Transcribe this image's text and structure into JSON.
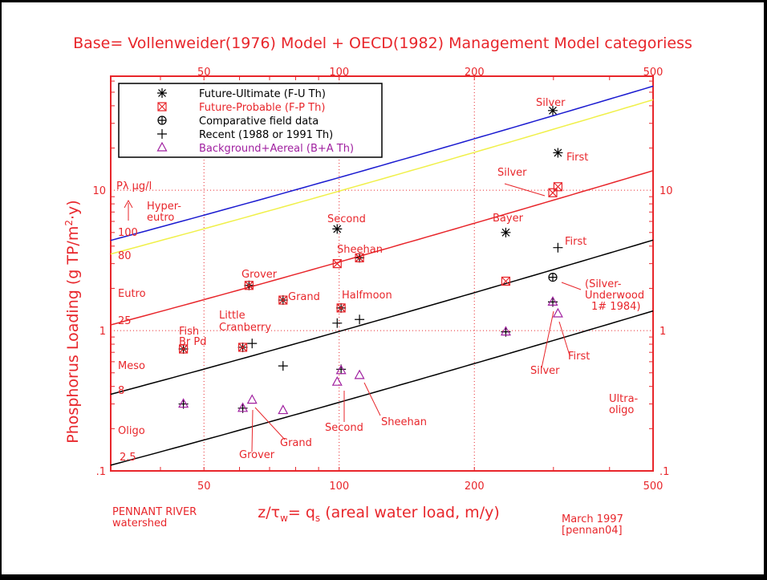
{
  "chart_data": {
    "type": "scatter",
    "title": "Base= Vollenweider(1976) Model + OECD(1982) Management Model categoriess",
    "xlabel": "z/τw= qs (areal water load, m/y)",
    "xlabel_parts": {
      "z": "z/",
      "tau": "τ",
      "w": "w",
      "eq": "= q",
      "s": "s",
      "rest": " (areal water load, m/y)"
    },
    "ylabel": "Phosphorus Loading (g TP/m²·y)",
    "ylabel_parts": {
      "main": "Phosphorus Loading (g TP/m",
      "sup": "2",
      "end": "·y)"
    },
    "x_scale": "log",
    "y_scale": "log",
    "xlim": [
      31,
      500
    ],
    "ylim": [
      0.1,
      65
    ],
    "x_ticks": [
      50,
      100,
      200,
      500
    ],
    "x_tick_labels": [
      "50",
      "100",
      "200",
      "500"
    ],
    "y_ticks": [
      0.1,
      1,
      10
    ],
    "y_tick_labels": [
      ".1",
      "1",
      "10"
    ],
    "colors": {
      "red": "#e8262b",
      "black": "#000000",
      "blue": "#1a1ad0",
      "yellow": "#f0f04a",
      "magenta": "#a020a0"
    },
    "legend": [
      {
        "symbol": "asterisk",
        "label": "Future-Ultimate (F-U Th)",
        "color": "#000000"
      },
      {
        "symbol": "boxed-x",
        "label": "Future-Probable (F-P Th)",
        "color": "#e8262b"
      },
      {
        "symbol": "circled-plus",
        "label": "Comparative field data",
        "color": "#000000"
      },
      {
        "symbol": "plus",
        "label": "Recent (1988 or 1991 Th)",
        "color": "#000000"
      },
      {
        "symbol": "triangle",
        "label": "Background+Aereal (B+A Th)",
        "color": "#a020a0"
      }
    ],
    "curves": [
      {
        "name": "100 µg/l",
        "color": "#1a1ad0",
        "factor": 0.1
      },
      {
        "name": "80 µg/l",
        "color": "#f0f04a",
        "factor": 0.08
      },
      {
        "name": "25 µg/l",
        "color": "#e8262b",
        "factor": 0.025
      },
      {
        "name": "8 µg/l",
        "color": "#000000",
        "factor": 0.008
      },
      {
        "name": "2.5 µg/l",
        "color": "#000000",
        "factor": 0.0025
      }
    ],
    "series": [
      {
        "name": "Future-Ultimate",
        "symbol": "asterisk",
        "points": [
          [
            299,
            37
          ],
          [
            307,
            18.5
          ],
          [
            99,
            5.3
          ],
          [
            235,
            5.0
          ],
          [
            63,
            2.1
          ],
          [
            75,
            1.65
          ],
          [
            101,
            1.45
          ],
          [
            111,
            3.3
          ],
          [
            61,
            0.76
          ],
          [
            45,
            0.74
          ]
        ]
      },
      {
        "name": "Future-Probable",
        "symbol": "boxed-x",
        "points": [
          [
            299,
            9.6
          ],
          [
            307,
            10.6
          ],
          [
            99,
            3.0
          ],
          [
            235,
            2.25
          ],
          [
            63,
            2.1
          ],
          [
            75,
            1.65
          ],
          [
            101,
            1.45
          ],
          [
            111,
            3.3
          ],
          [
            61,
            0.76
          ],
          [
            45,
            0.74
          ]
        ]
      },
      {
        "name": "Comparative",
        "symbol": "circled-plus",
        "points": [
          [
            299,
            2.4
          ]
        ]
      },
      {
        "name": "Recent",
        "symbol": "plus",
        "points": [
          [
            307,
            3.9
          ],
          [
            99,
            1.13
          ],
          [
            111,
            1.2
          ],
          [
            64,
            0.81
          ],
          [
            75,
            0.56
          ],
          [
            45,
            0.3
          ],
          [
            61,
            0.28
          ],
          [
            101,
            0.53
          ],
          [
            235,
            0.98
          ],
          [
            299,
            1.6
          ]
        ]
      },
      {
        "name": "Background+Aereal",
        "symbol": "triangle",
        "points": [
          [
            45,
            0.3
          ],
          [
            61,
            0.28
          ],
          [
            64,
            0.32
          ],
          [
            75,
            0.27
          ],
          [
            99,
            0.43
          ],
          [
            101,
            0.52
          ],
          [
            111,
            0.48
          ],
          [
            235,
            0.98
          ],
          [
            299,
            1.6
          ],
          [
            307,
            1.32
          ]
        ]
      }
    ],
    "annotations": {
      "category_labels": [
        "Hyper-",
        "eutro",
        "Eutro",
        "Meso",
        "Oligo",
        "Ultra-",
        "oligo"
      ],
      "curve_labels": [
        "Pλ µg/l",
        "100",
        "80",
        "25",
        "8",
        "2.5"
      ],
      "point_labels": [
        "Silver",
        "First",
        "Silver",
        "Bayer",
        "First",
        "(Silver-",
        "Underwood",
        "1# 1984)",
        "Second",
        "Sheehan",
        "Halfmoon",
        "Grover",
        "Grand",
        "Little",
        "Cranberry",
        "Fish",
        "Br Pd",
        "Silver",
        "First",
        "Second",
        "Sheehan",
        "Grand",
        "Grover"
      ]
    },
    "footer_left": [
      "PENNANT RIVER",
      "watershed"
    ],
    "footer_right": [
      "March 1997",
      "[pennan04]"
    ]
  }
}
